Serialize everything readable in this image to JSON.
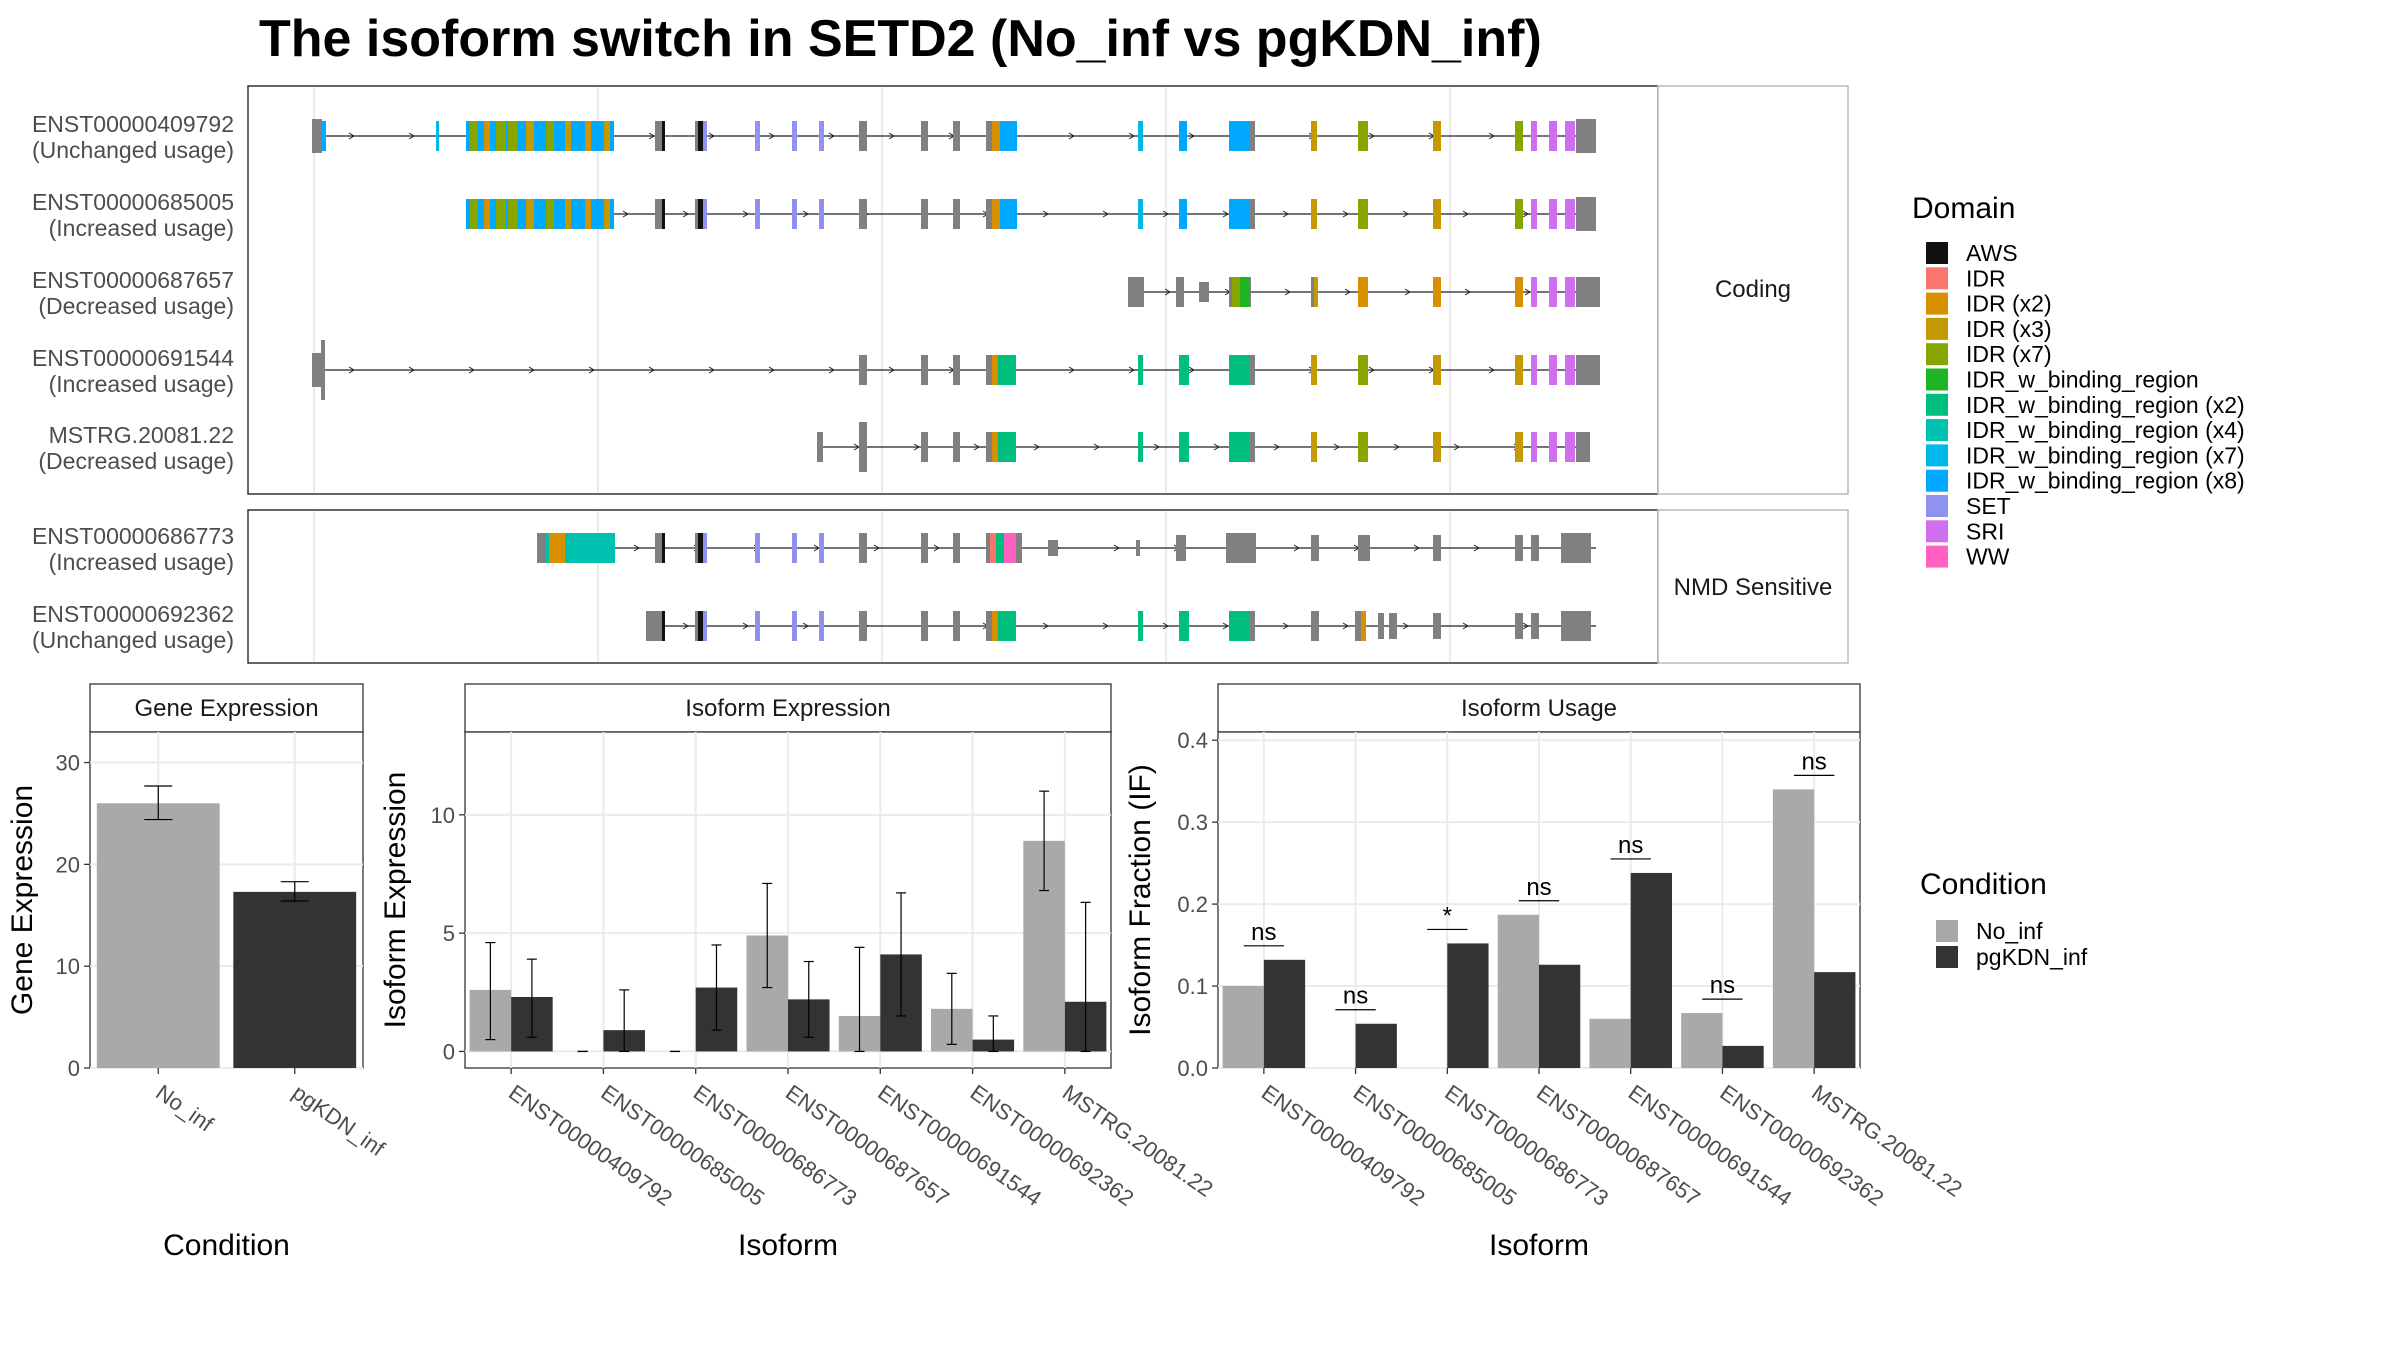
{
  "title": "The isoform switch in SETD2 (No_inf vs pgKDN_inf)",
  "colors": {
    "AWS": "#111111",
    "IDR": "#F8766D",
    "IDR (x2)": "#D89000",
    "IDR (x3)": "#C49A00",
    "IDR (x7)": "#87A600",
    "IDR_w_binding_region": "#1FB424",
    "IDR_w_binding_region (x2)": "#00BF7D",
    "IDR_w_binding_region (x4)": "#00C0AF",
    "IDR_w_binding_region (x7)": "#00B8E7",
    "IDR_w_binding_region (x8)": "#00A9FF",
    "SET": "#8F93EE",
    "SRI": "#D06EF0",
    "WW": "#FF61C3",
    "exon": "#808080",
    "No_inf": "#A9A9A9",
    "pgKDN_inf": "#333333"
  },
  "legend_domain": {
    "title": "Domain",
    "items": [
      "AWS",
      "IDR",
      "IDR (x2)",
      "IDR (x3)",
      "IDR (x7)",
      "IDR_w_binding_region",
      "IDR_w_binding_region (x2)",
      "IDR_w_binding_region (x4)",
      "IDR_w_binding_region (x7)",
      "IDR_w_binding_region (x8)",
      "SET",
      "SRI",
      "WW"
    ]
  },
  "legend_condition": {
    "title": "Condition",
    "items": [
      "No_inf",
      "pgKDN_inf"
    ]
  },
  "panels": {
    "coding": {
      "label": "Coding",
      "transcripts": [
        {
          "id": "ENST00000409792",
          "status": "(Unchanged usage)",
          "pattern": "full"
        },
        {
          "id": "ENST00000685005",
          "status": "(Increased usage)",
          "pattern": "trunc5"
        },
        {
          "id": "ENST00000687657",
          "status": "(Decreased usage)",
          "pattern": "short3"
        },
        {
          "id": "ENST00000691544",
          "status": "(Increased usage)",
          "pattern": "long_intron"
        },
        {
          "id": "MSTRG.20081.22",
          "status": "(Decreased usage)",
          "pattern": "mstrg"
        }
      ]
    },
    "nmd": {
      "label": "NMD Sensitive",
      "transcripts": [
        {
          "id": "ENST00000686773",
          "status": "(Increased usage)",
          "pattern": "nmd1"
        },
        {
          "id": "ENST00000692362",
          "status": "(Unchanged usage)",
          "pattern": "nmd2"
        }
      ]
    }
  },
  "chart_data": [
    {
      "type": "bar",
      "title": "Gene Expression",
      "xlabel": "Condition",
      "ylabel": "Gene Expression",
      "categories": [
        "No_inf",
        "pgKDN_inf"
      ],
      "values": [
        26.0,
        17.3
      ],
      "error": [
        [
          24.4,
          27.7
        ],
        [
          16.4,
          18.3
        ]
      ],
      "ylim": [
        0,
        33
      ],
      "yticks": [
        0,
        10,
        20,
        30
      ]
    },
    {
      "type": "bar",
      "title": "Isoform Expression",
      "xlabel": "Isoform",
      "ylabel": "Isoform Expression",
      "categories": [
        "ENST00000409792",
        "ENST00000685005",
        "ENST00000686773",
        "ENST00000687657",
        "ENST00000691544",
        "ENST00000692362",
        "MSTRG.20081.22"
      ],
      "series": [
        {
          "name": "No_inf",
          "values": [
            2.6,
            0.0,
            0.0,
            4.9,
            1.5,
            1.8,
            8.9
          ],
          "error": [
            [
              0.5,
              4.6
            ],
            [
              0,
              0
            ],
            [
              0,
              0
            ],
            [
              2.7,
              7.1
            ],
            [
              0,
              4.4
            ],
            [
              0.3,
              3.3
            ],
            [
              6.8,
              11.0
            ]
          ]
        },
        {
          "name": "pgKDN_inf",
          "values": [
            2.3,
            0.9,
            2.7,
            2.2,
            4.1,
            0.5,
            2.1
          ],
          "error": [
            [
              0.6,
              3.9
            ],
            [
              0,
              2.6
            ],
            [
              0.9,
              4.5
            ],
            [
              0.6,
              3.8
            ],
            [
              1.5,
              6.7
            ],
            [
              0,
              1.5
            ],
            [
              0,
              6.3
            ]
          ]
        }
      ],
      "ylim": [
        -0.7,
        13.5
      ],
      "yticks": [
        0,
        5,
        10
      ]
    },
    {
      "type": "bar",
      "title": "Isoform Usage",
      "xlabel": "Isoform",
      "ylabel": "Isoform Fraction (IF)",
      "categories": [
        "ENST00000409792",
        "ENST00000685005",
        "ENST00000686773",
        "ENST00000687657",
        "ENST00000691544",
        "ENST00000692362",
        "MSTRG.20081.22"
      ],
      "series": [
        {
          "name": "No_inf",
          "values": [
            0.1,
            0.0,
            0.0,
            0.187,
            0.06,
            0.067,
            0.34
          ]
        },
        {
          "name": "pgKDN_inf",
          "values": [
            0.132,
            0.054,
            0.152,
            0.126,
            0.238,
            0.027,
            0.117
          ]
        }
      ],
      "significance": [
        "ns",
        "ns",
        "*",
        "ns",
        "ns",
        "ns",
        "ns"
      ],
      "ylim": [
        0,
        0.41
      ],
      "yticks": [
        0.0,
        0.1,
        0.2,
        0.3,
        0.4
      ],
      "ytick_labels": [
        "0.0",
        "0.1",
        "0.2",
        "0.3",
        "0.4"
      ]
    }
  ]
}
